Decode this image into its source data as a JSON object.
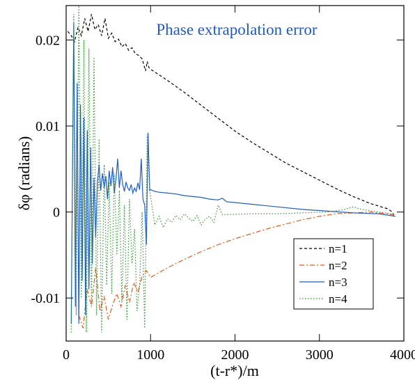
{
  "chart_data": {
    "type": "line",
    "title": "Phase extrapolation error",
    "xlabel": "(t-r*)/m",
    "ylabel": "δφ (radians)",
    "xlim": [
      0,
      4000
    ],
    "ylim": [
      -0.015,
      0.024
    ],
    "x_ticks": [
      0,
      1000,
      2000,
      3000,
      4000
    ],
    "x_tick_labels": [
      "0",
      "1000",
      "2000",
      "3000",
      "4000"
    ],
    "y_ticks": [
      -0.01,
      0,
      0.01,
      0.02
    ],
    "y_tick_labels": [
      "-0.01",
      "0",
      "0.01",
      "0.02"
    ],
    "grid": false,
    "legend_position": "lower-right",
    "title_color": "#1e5bc6",
    "series": [
      {
        "name": "n=1",
        "color": "#000000",
        "style": "dashed",
        "x": [
          20,
          60,
          100,
          140,
          180,
          220,
          260,
          300,
          340,
          380,
          420,
          460,
          500,
          540,
          580,
          620,
          660,
          700,
          740,
          780,
          820,
          860,
          900,
          940,
          960,
          980,
          1000,
          1200,
          1400,
          1600,
          1800,
          2000,
          2200,
          2400,
          2600,
          2800,
          3000,
          3200,
          3400,
          3600,
          3700,
          3800,
          3850,
          3880
        ],
        "y": [
          0.021,
          0.0205,
          0.0198,
          0.0215,
          0.0205,
          0.0225,
          0.021,
          0.023,
          0.0212,
          0.0218,
          0.0205,
          0.0225,
          0.0202,
          0.0208,
          0.0198,
          0.0201,
          0.0192,
          0.0196,
          0.0188,
          0.0191,
          0.0184,
          0.0182,
          0.0178,
          0.0164,
          0.0175,
          0.0168,
          0.0166,
          0.0153,
          0.0139,
          0.0124,
          0.0109,
          0.0094,
          0.0081,
          0.0069,
          0.0057,
          0.0047,
          0.0037,
          0.0027,
          0.0018,
          0.001,
          0.0007,
          0.0004,
          0.0001,
          -0.0003
        ]
      },
      {
        "name": "n=2",
        "color": "#e05a1c",
        "style": "dashdot",
        "x": [
          150,
          200,
          250,
          300,
          350,
          400,
          450,
          500,
          550,
          600,
          650,
          700,
          750,
          800,
          850,
          900,
          950,
          1000,
          1200,
          1400,
          1600,
          1800,
          2000,
          2200,
          2400,
          2600,
          2800,
          3000,
          3200,
          3400,
          3600,
          3800,
          3900
        ],
        "y": [
          -0.012,
          -0.0135,
          -0.009,
          -0.011,
          -0.0065,
          -0.0115,
          -0.0098,
          -0.0125,
          -0.0108,
          -0.0095,
          -0.011,
          -0.0085,
          -0.0105,
          -0.0082,
          -0.0093,
          -0.0075,
          -0.0068,
          -0.0076,
          -0.0065,
          -0.0055,
          -0.0046,
          -0.0038,
          -0.0031,
          -0.0025,
          -0.0019,
          -0.0014,
          -0.0009,
          -0.0005,
          -0.0002,
          -0.0001,
          0.0,
          -0.0002,
          -0.0004
        ]
      },
      {
        "name": "n=3",
        "color": "#1e5bc6",
        "style": "solid",
        "x": [
          60,
          90,
          110,
          130,
          150,
          170,
          190,
          210,
          230,
          250,
          270,
          290,
          310,
          330,
          350,
          370,
          390,
          410,
          430,
          450,
          470,
          490,
          510,
          530,
          550,
          570,
          590,
          610,
          630,
          650,
          670,
          690,
          710,
          730,
          750,
          770,
          790,
          810,
          830,
          850,
          870,
          890,
          910,
          930,
          950,
          970,
          990,
          1000,
          1050,
          1100,
          1200,
          1300,
          1400,
          1500,
          1600,
          1700,
          1800,
          1850,
          1900,
          2200,
          2500,
          2800,
          3100,
          3400,
          3700,
          3900
        ],
        "y": [
          -0.013,
          0.022,
          -0.011,
          0.015,
          -0.013,
          0.0125,
          -0.008,
          0.011,
          -0.012,
          0.0095,
          -0.009,
          0.0075,
          -0.006,
          0.004,
          -0.003,
          0.0035,
          0.0055,
          0.0025,
          0.0045,
          0.0028,
          0.0042,
          0.0015,
          0.0048,
          0.003,
          0.0052,
          0.0022,
          0.0038,
          0.0062,
          0.0028,
          0.0048,
          0.0032,
          0.0024,
          0.0035,
          0.0028,
          0.0025,
          0.0032,
          0.0022,
          0.0028,
          0.0024,
          0.0034,
          0.0026,
          0.0062,
          0.0015,
          0.0008,
          -0.0038,
          0.0092,
          0.0025,
          0.0026,
          0.0024,
          0.0023,
          0.0022,
          0.0021,
          0.0019,
          0.0018,
          0.0017,
          0.0015,
          0.0014,
          0.0016,
          0.0012,
          0.0009,
          0.0006,
          0.0003,
          0.0001,
          -0.0001,
          -0.0002,
          -0.0005
        ]
      },
      {
        "name": "n=4",
        "color": "#2e9a2e",
        "style": "dotted",
        "x": [
          60,
          90,
          120,
          150,
          180,
          210,
          240,
          270,
          300,
          330,
          360,
          390,
          420,
          450,
          480,
          510,
          540,
          570,
          600,
          630,
          660,
          690,
          720,
          750,
          780,
          810,
          840,
          870,
          900,
          930,
          960,
          990,
          1050,
          1100,
          1150,
          1200,
          1250,
          1300,
          1350,
          1400,
          1450,
          1500,
          1550,
          1600,
          1650,
          1700,
          1750,
          1800,
          1850,
          1900,
          2200,
          2500,
          2800,
          3100,
          3300,
          3400,
          3500,
          3700,
          3900
        ],
        "y": [
          -0.014,
          0.023,
          -0.012,
          0.024,
          -0.01,
          0.02,
          -0.014,
          0.019,
          -0.011,
          0.018,
          -0.012,
          0.0085,
          -0.014,
          0.0055,
          -0.0085,
          0.0035,
          -0.0095,
          0.0045,
          -0.005,
          0.0025,
          -0.0105,
          0.0008,
          -0.0125,
          0.0015,
          -0.006,
          -0.002,
          -0.0115,
          -0.0085,
          0.0,
          -0.0135,
          0.009,
          0.0025,
          -0.0015,
          -0.0005,
          -0.0018,
          -0.0008,
          -0.0012,
          -0.0004,
          -0.0009,
          -0.0002,
          -0.0007,
          -0.0011,
          -0.0004,
          -0.0015,
          -0.0008,
          -0.0005,
          -0.0012,
          0.0008,
          -0.0003,
          -0.0003,
          -0.0002,
          -0.0002,
          -0.0001,
          0.0,
          0.0003,
          0.0006,
          0.0003,
          0.0,
          -0.0003
        ]
      }
    ]
  }
}
